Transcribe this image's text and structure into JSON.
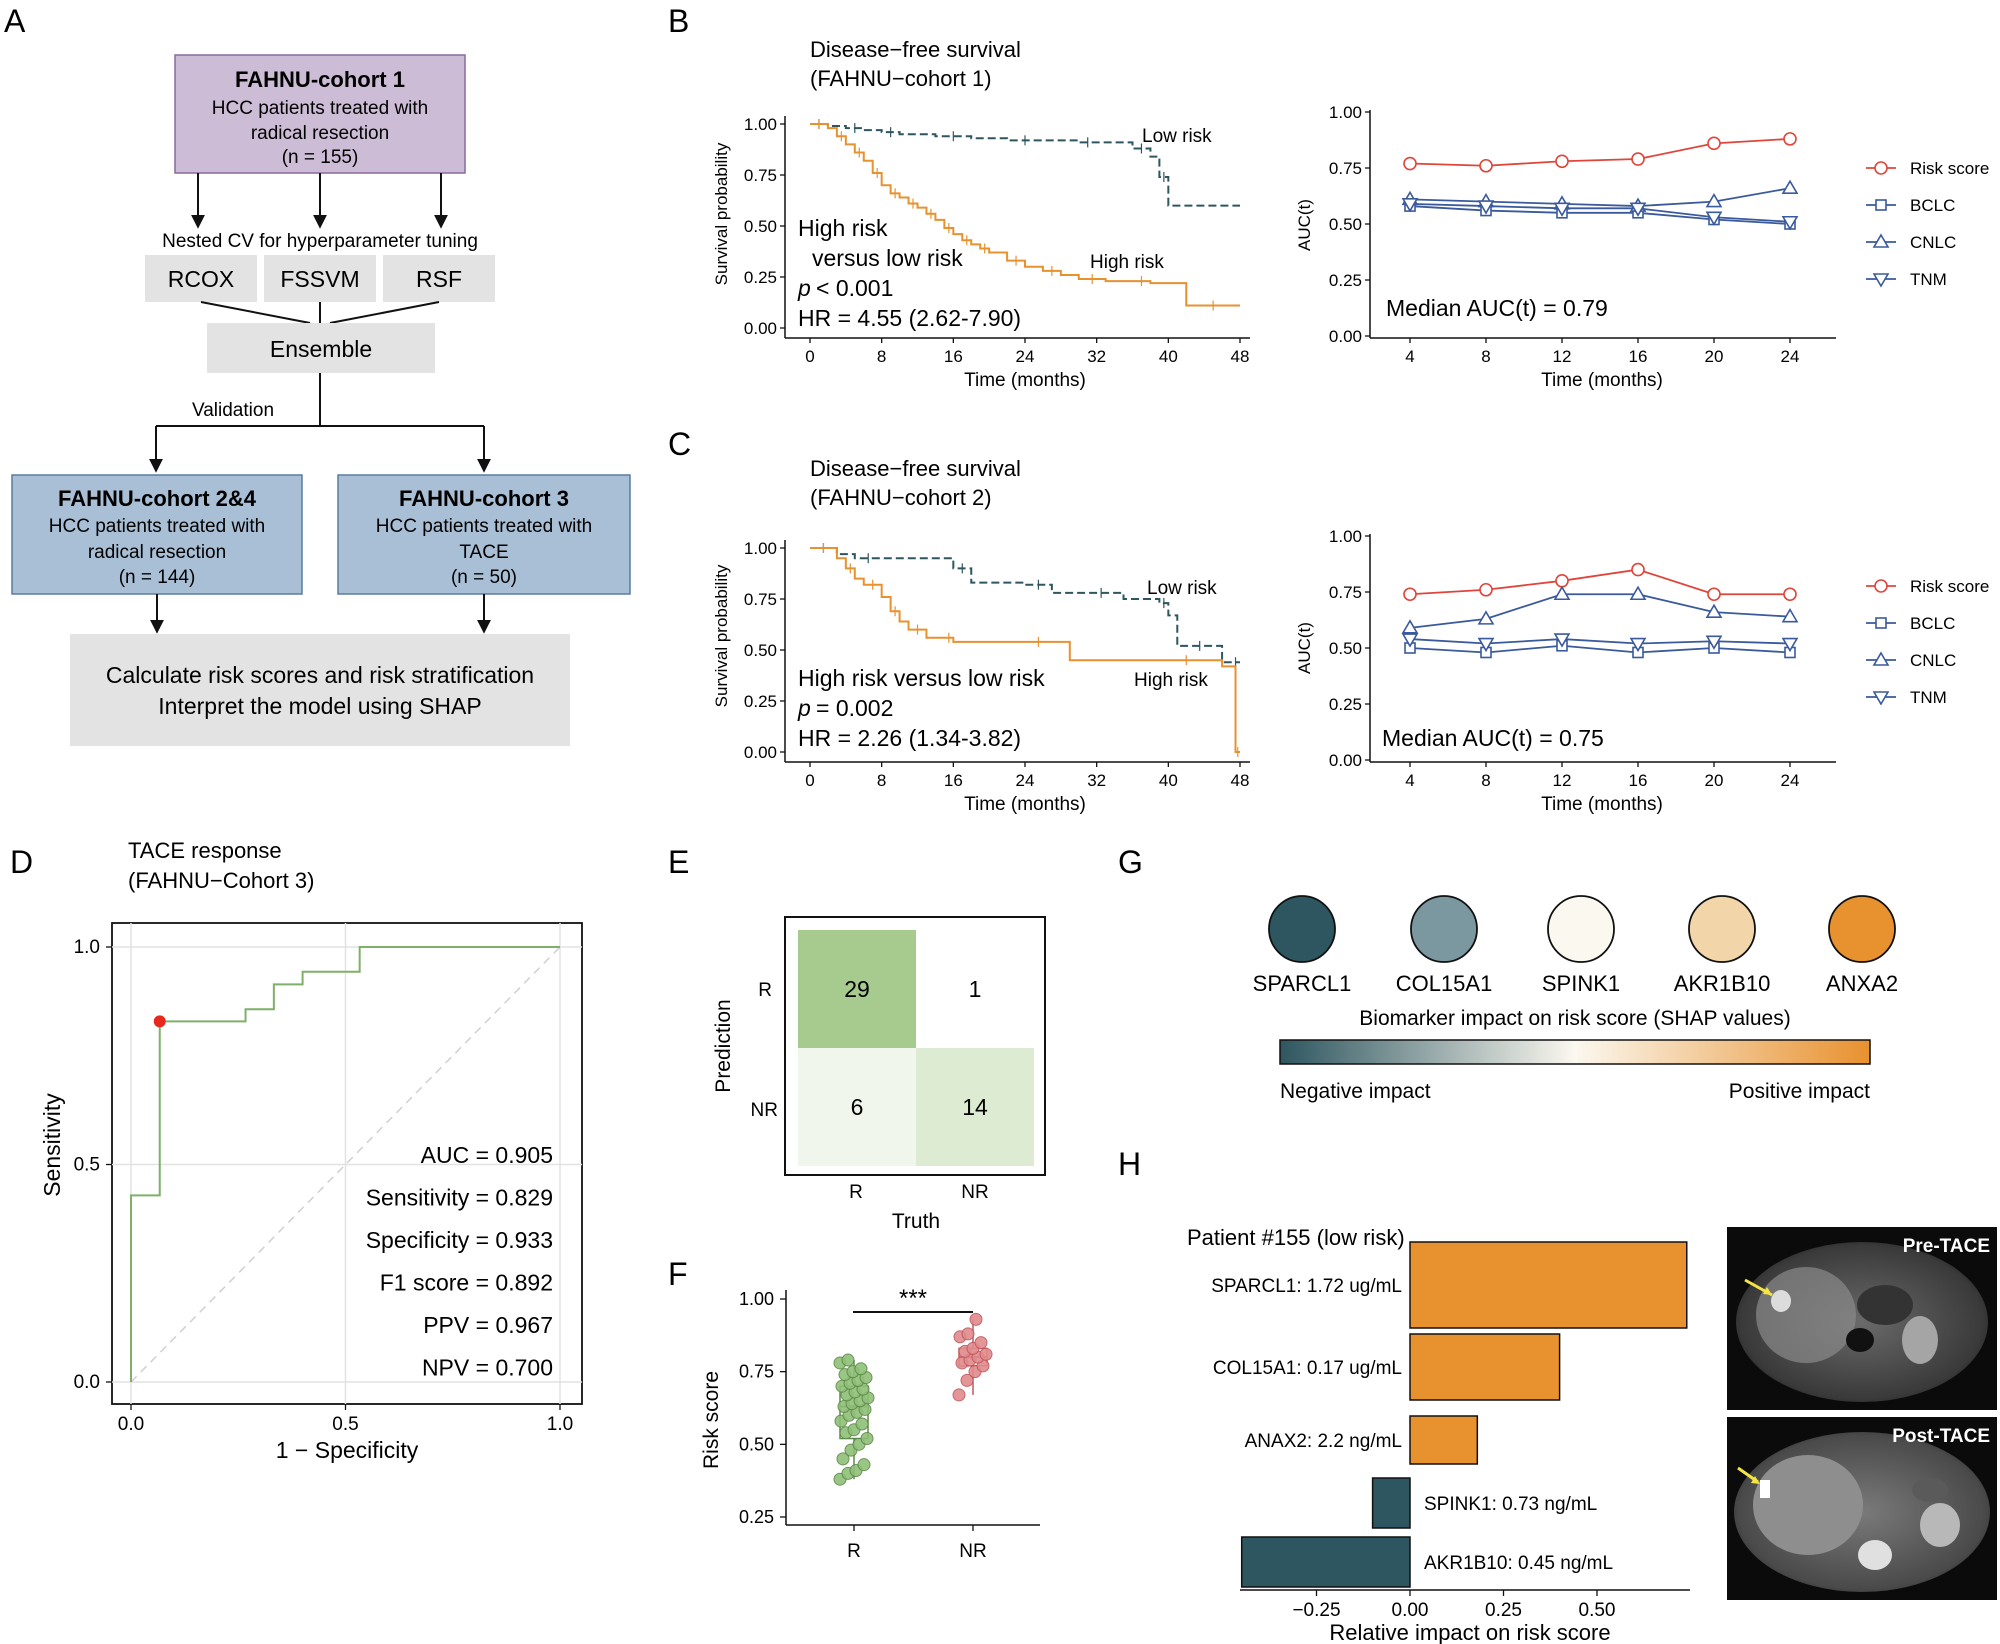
{
  "colors": {
    "orange": "#e8912f",
    "teal": "#2e5660",
    "teal_light": "#7b97a0",
    "red": "#e0453a",
    "navy": "#3a5a9c",
    "green": "#7fb069",
    "purple_box": "#cdbcd6",
    "blue_box": "#a9bfd6",
    "gray_box": "#e3e3e3"
  },
  "panels": {
    "A": "A",
    "B": "B",
    "C": "C",
    "D": "D",
    "E": "E",
    "F": "F",
    "G": "G",
    "H": "H"
  },
  "flowchart": {
    "cohort1": {
      "title": "FAHNU-cohort 1",
      "line1": "HCC patients treated with",
      "line2": "radical resection",
      "n": "(n = 155)"
    },
    "nested_cv": "Nested CV for hyperparameter tuning",
    "models": [
      "RCOX",
      "FSSVM",
      "RSF"
    ],
    "ensemble": "Ensemble",
    "validation": "Validation",
    "cohort24": {
      "title": "FAHNU-cohort 2&4",
      "line1": "HCC patients treated with",
      "line2": "radical resection",
      "n": "(n = 144)"
    },
    "cohort3": {
      "title": "FAHNU-cohort 3",
      "line1": "HCC patients treated with",
      "line2": "TACE",
      "n": "(n = 50)"
    },
    "final": {
      "line1": "Calculate risk scores and risk stratification",
      "line2": "Interpret the model using SHAP"
    }
  },
  "chart_data": [
    {
      "id": "B-km",
      "type": "line",
      "title": "Disease−free survival",
      "subtitle": "(FAHNU−cohort 1)",
      "xlabel": "Time (months)",
      "ylabel": "Survival probability",
      "xlim": [
        0,
        48
      ],
      "ylim": [
        0,
        1
      ],
      "xticks": [
        0,
        8,
        16,
        24,
        32,
        40,
        48
      ],
      "yticks": [
        "0.00",
        "0.25",
        "0.50",
        "0.75",
        "1.00"
      ],
      "series": [
        {
          "name": "Low risk",
          "label": "Low risk",
          "x": [
            0,
            2,
            4,
            6,
            8,
            10,
            14,
            18,
            22,
            26,
            30,
            32,
            36,
            38,
            39,
            40,
            48
          ],
          "y": [
            1.0,
            0.99,
            0.98,
            0.97,
            0.96,
            0.95,
            0.94,
            0.93,
            0.92,
            0.92,
            0.91,
            0.91,
            0.88,
            0.84,
            0.74,
            0.6,
            0.6
          ]
        },
        {
          "name": "High risk",
          "label": "High risk",
          "x": [
            0,
            2,
            3,
            4,
            5,
            6,
            7,
            8,
            9,
            10,
            11,
            12,
            13,
            14,
            15,
            16,
            17,
            18,
            19,
            20,
            22,
            24,
            26,
            28,
            30,
            33,
            36,
            38,
            42,
            48
          ],
          "y": [
            1.0,
            0.98,
            0.94,
            0.9,
            0.86,
            0.82,
            0.76,
            0.7,
            0.66,
            0.64,
            0.61,
            0.59,
            0.56,
            0.53,
            0.49,
            0.46,
            0.43,
            0.41,
            0.39,
            0.37,
            0.33,
            0.3,
            0.28,
            0.26,
            0.24,
            0.23,
            0.23,
            0.22,
            0.11,
            0.11
          ]
        }
      ],
      "annotations": [
        "High risk",
        "versus low risk",
        "< 0.001",
        "HR = 4.55 (2.62-7.90)"
      ]
    },
    {
      "id": "B-auc",
      "type": "line",
      "xlabel": "Time (months)",
      "ylabel": "AUC(t)",
      "x": [
        4,
        8,
        12,
        16,
        20,
        24
      ],
      "ylim": [
        0,
        1
      ],
      "yticks": [
        "0.00",
        "0.25",
        "0.50",
        "0.75",
        "1.00"
      ],
      "series": [
        {
          "name": "Risk score",
          "marker": "circle",
          "values": [
            0.77,
            0.76,
            0.78,
            0.79,
            0.86,
            0.88
          ]
        },
        {
          "name": "BCLC",
          "marker": "square",
          "values": [
            0.58,
            0.56,
            0.55,
            0.55,
            0.52,
            0.5
          ]
        },
        {
          "name": "CNLC",
          "marker": "triangle-up",
          "values": [
            0.61,
            0.6,
            0.59,
            0.58,
            0.6,
            0.66
          ]
        },
        {
          "name": "TNM",
          "marker": "triangle-down",
          "values": [
            0.59,
            0.58,
            0.57,
            0.57,
            0.53,
            0.51
          ]
        }
      ],
      "annotation": "Median AUC(t) = 0.79"
    },
    {
      "id": "C-km",
      "type": "line",
      "title": "Disease−free survival",
      "subtitle": "(FAHNU−cohort 2)",
      "xlabel": "Time (months)",
      "ylabel": "Survival probability",
      "xlim": [
        0,
        48
      ],
      "ylim": [
        0,
        1
      ],
      "xticks": [
        0,
        8,
        16,
        24,
        32,
        40,
        48
      ],
      "yticks": [
        "0.00",
        "0.25",
        "0.50",
        "0.75",
        "1.00"
      ],
      "series": [
        {
          "name": "Low risk",
          "label": "Low risk",
          "x": [
            0,
            3,
            5,
            8,
            16,
            18,
            24,
            27,
            30,
            35,
            39,
            40,
            41,
            46,
            47,
            48
          ],
          "y": [
            1.0,
            0.97,
            0.95,
            0.95,
            0.9,
            0.83,
            0.82,
            0.78,
            0.78,
            0.75,
            0.73,
            0.67,
            0.52,
            0.44,
            0.44,
            0.44
          ]
        },
        {
          "name": "High risk",
          "label": "High risk",
          "x": [
            0,
            3,
            4,
            5,
            6,
            8,
            9,
            10,
            11,
            13,
            15,
            16,
            22,
            29,
            38,
            46,
            47.5,
            48
          ],
          "y": [
            1.0,
            0.95,
            0.9,
            0.85,
            0.82,
            0.76,
            0.69,
            0.64,
            0.6,
            0.56,
            0.56,
            0.54,
            0.54,
            0.45,
            0.45,
            0.42,
            0.0,
            0.0
          ]
        }
      ],
      "annotations": [
        "High risk versus low risk",
        "= 0.002",
        "HR = 2.26 (1.34-3.82)"
      ]
    },
    {
      "id": "C-auc",
      "type": "line",
      "xlabel": "Time (months)",
      "ylabel": "AUC(t)",
      "x": [
        4,
        8,
        12,
        16,
        20,
        24
      ],
      "ylim": [
        0,
        1
      ],
      "yticks": [
        "0.00",
        "0.25",
        "0.50",
        "0.75",
        "1.00"
      ],
      "series": [
        {
          "name": "Risk score",
          "marker": "circle",
          "values": [
            0.74,
            0.76,
            0.8,
            0.85,
            0.74,
            0.74
          ]
        },
        {
          "name": "BCLC",
          "marker": "square",
          "values": [
            0.5,
            0.48,
            0.51,
            0.48,
            0.5,
            0.48
          ]
        },
        {
          "name": "CNLC",
          "marker": "triangle-up",
          "values": [
            0.59,
            0.63,
            0.74,
            0.74,
            0.66,
            0.64
          ]
        },
        {
          "name": "TNM",
          "marker": "triangle-down",
          "values": [
            0.54,
            0.52,
            0.54,
            0.52,
            0.53,
            0.52
          ]
        }
      ],
      "annotation": "Median AUC(t) = 0.75"
    },
    {
      "id": "D-roc",
      "type": "line",
      "title": "TACE response",
      "subtitle": "(FAHNU−Cohort 3)",
      "xlabel": "1 − Specificity",
      "ylabel": "Sensitivity",
      "xlim": [
        0,
        1
      ],
      "ylim": [
        0,
        1
      ],
      "xticks": [
        "0.0",
        "0.5",
        "1.0"
      ],
      "yticks": [
        "0.0",
        "0.5",
        "1.0"
      ],
      "x": [
        0,
        0,
        0.067,
        0.067,
        0.267,
        0.267,
        0.333,
        0.333,
        0.4,
        0.4,
        0.533,
        0.533,
        1.0
      ],
      "y": [
        0,
        0.429,
        0.429,
        0.829,
        0.829,
        0.857,
        0.857,
        0.914,
        0.914,
        0.943,
        0.943,
        1.0,
        1.0
      ],
      "optimal_point": {
        "x": 0.067,
        "y": 0.829
      },
      "metrics": [
        "AUC = 0.905",
        "Sensitivity = 0.829",
        "Specificity = 0.933",
        "F1 score = 0.892",
        "PPV = 0.967",
        "NPV = 0.700"
      ]
    },
    {
      "id": "E-confusion",
      "type": "heatmap",
      "xlabel": "Truth",
      "ylabel": "Prediction",
      "categories": [
        "R",
        "NR"
      ],
      "cells": [
        {
          "pred": "R",
          "truth": "R",
          "value": "29"
        },
        {
          "pred": "R",
          "truth": "NR",
          "value": "1"
        },
        {
          "pred": "NR",
          "truth": "R",
          "value": "6"
        },
        {
          "pred": "NR",
          "truth": "NR",
          "value": "14"
        }
      ]
    },
    {
      "id": "F-box",
      "type": "scatter",
      "xlabel": "",
      "ylabel": "Risk score",
      "categories": [
        "R",
        "NR"
      ],
      "ylim": [
        0.25,
        1.0
      ],
      "yticks": [
        "0.25",
        "0.50",
        "0.75",
        "1.00"
      ],
      "significance": "***",
      "R_points": [
        0.38,
        0.4,
        0.41,
        0.43,
        0.45,
        0.48,
        0.5,
        0.52,
        0.54,
        0.55,
        0.57,
        0.58,
        0.6,
        0.61,
        0.62,
        0.63,
        0.64,
        0.65,
        0.66,
        0.67,
        0.68,
        0.69,
        0.7,
        0.71,
        0.72,
        0.73,
        0.74,
        0.75,
        0.76,
        0.78,
        0.79
      ],
      "NR_points": [
        0.67,
        0.72,
        0.75,
        0.77,
        0.78,
        0.79,
        0.8,
        0.81,
        0.82,
        0.83,
        0.85,
        0.87,
        0.88,
        0.93
      ]
    },
    {
      "id": "H-bar",
      "type": "bar",
      "title": "Patient #155 (low risk)",
      "xlabel": "Relative impact on risk score",
      "xlim": [
        -0.45,
        0.75
      ],
      "xticks": [
        "−0.25",
        "0.00",
        "0.25",
        "0.50"
      ],
      "categories": [
        "SPARCL1: 1.72 ug/mL",
        "COL15A1: 0.17 ug/mL",
        "ANAX2: 2.2 ng/mL",
        "SPINK1: 0.73 ng/mL",
        "AKR1B10: 0.45 ng/mL"
      ],
      "values": [
        0.74,
        0.4,
        0.18,
        -0.1,
        -0.45
      ]
    }
  ],
  "shap_legend": {
    "genes": [
      "SPARCL1",
      "COL15A1",
      "SPINK1",
      "AKR1B10",
      "ANXA2"
    ],
    "gene_colors": [
      "#2e5660",
      "#7b97a0",
      "#fbf8ef",
      "#f2d6a9",
      "#e8912f"
    ],
    "title": "Biomarker impact on risk score (SHAP values)",
    "negative": "Negative impact",
    "positive": "Positive impact"
  },
  "images": {
    "pre": "Pre-TACE",
    "post": "Post-TACE"
  }
}
